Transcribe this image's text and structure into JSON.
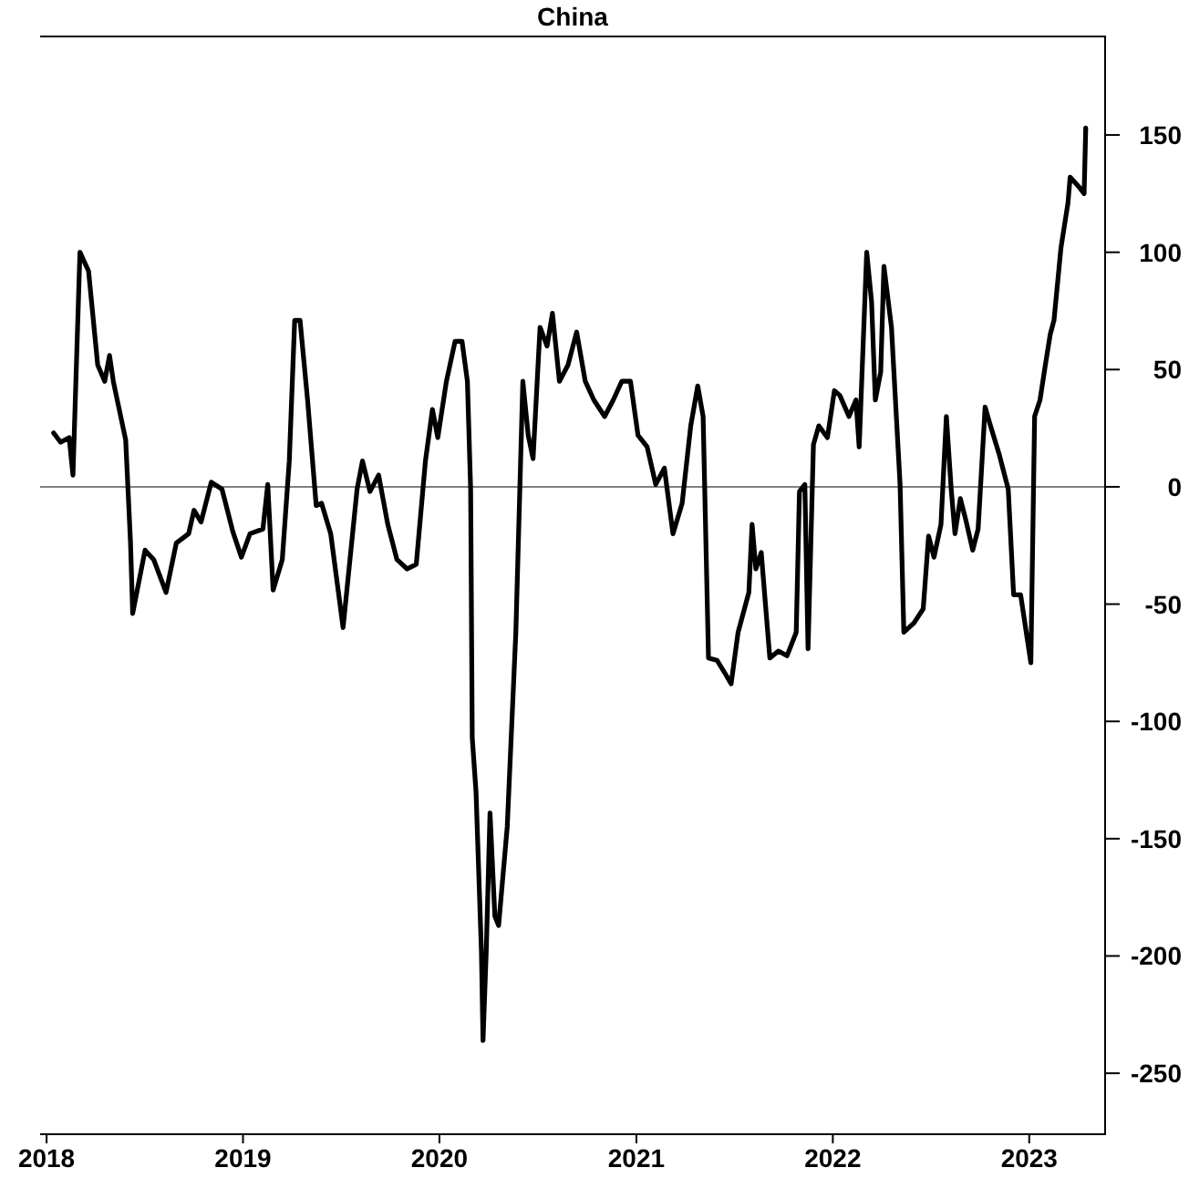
{
  "chart_data": {
    "type": "line",
    "title": "China",
    "x": [
      "2018-01-14",
      "2018-01-27",
      "2018-02-12",
      "2018-02-19",
      "2018-03-04",
      "2018-03-20",
      "2018-04-06",
      "2018-04-19",
      "2018-04-28",
      "2018-05-05",
      "2018-05-28",
      "2018-06-06",
      "2018-06-10",
      "2018-07-03",
      "2018-07-19",
      "2018-08-11",
      "2018-08-30",
      "2018-09-22",
      "2018-10-02",
      "2018-10-15",
      "2018-11-03",
      "2018-11-23",
      "2018-12-13",
      "2018-12-29",
      "2019-01-14",
      "2019-02-07",
      "2019-02-16",
      "2019-02-26",
      "2019-03-15",
      "2019-03-28",
      "2019-04-07",
      "2019-04-17",
      "2019-05-01",
      "2019-05-17",
      "2019-05-27",
      "2019-06-13",
      "2019-07-06",
      "2019-08-01",
      "2019-08-11",
      "2019-08-25",
      "2019-09-10",
      "2019-09-27",
      "2019-10-14",
      "2019-11-02",
      "2019-11-19",
      "2019-12-06",
      "2019-12-19",
      "2019-12-29",
      "2020-01-14",
      "2020-01-30",
      "2020-02-12",
      "2020-02-22",
      "2020-02-28",
      "2020-03-02",
      "2020-03-09",
      "2020-03-19",
      "2020-03-22",
      "2020-03-28",
      "2020-04-04",
      "2020-04-13",
      "2020-04-20",
      "2020-05-06",
      "2020-05-22",
      "2020-06-04",
      "2020-06-14",
      "2020-06-23",
      "2020-07-06",
      "2020-07-19",
      "2020-07-29",
      "2020-08-11",
      "2020-08-27",
      "2020-09-12",
      "2020-09-28",
      "2020-10-14",
      "2020-11-03",
      "2020-11-19",
      "2020-12-05",
      "2020-12-21",
      "2021-01-04",
      "2021-01-21",
      "2021-02-06",
      "2021-02-22",
      "2021-03-10",
      "2021-03-27",
      "2021-04-12",
      "2021-04-25",
      "2021-05-05",
      "2021-05-15",
      "2021-05-31",
      "2021-06-16",
      "2021-06-26",
      "2021-07-09",
      "2021-07-29",
      "2021-08-04",
      "2021-08-11",
      "2021-08-21",
      "2021-09-06",
      "2021-09-22",
      "2021-10-08",
      "2021-10-25",
      "2021-10-31",
      "2021-11-10",
      "2021-11-16",
      "2021-11-26",
      "2021-12-06",
      "2021-12-22",
      "2022-01-04",
      "2022-01-14",
      "2022-01-31",
      "2022-02-13",
      "2022-02-19",
      "2022-03-05",
      "2022-03-14",
      "2022-03-21",
      "2022-03-31",
      "2022-04-06",
      "2022-04-20",
      "2022-05-06",
      "2022-05-13",
      "2022-06-01",
      "2022-06-18",
      "2022-06-28",
      "2022-07-08",
      "2022-07-21",
      "2022-07-31",
      "2022-08-09",
      "2022-08-16",
      "2022-08-26",
      "2022-09-05",
      "2022-09-18",
      "2022-09-28",
      "2022-10-11",
      "2022-10-21",
      "2022-11-06",
      "2022-11-23",
      "2022-12-03",
      "2022-12-16",
      "2023-01-04",
      "2023-01-11",
      "2023-01-21",
      "2023-01-31",
      "2023-02-09",
      "2023-02-16",
      "2023-03-01",
      "2023-03-14",
      "2023-03-18",
      "2023-04-03",
      "2023-04-13",
      "2023-04-16"
    ],
    "series": [
      {
        "color": "#000000",
        "values": [
          23,
          19,
          21,
          5,
          100,
          92,
          52,
          45,
          56,
          45,
          20,
          -24,
          -54,
          -27,
          -31,
          -45,
          -24,
          -20,
          -10,
          -15,
          2,
          -1,
          -19,
          -30,
          -20,
          -18,
          1,
          -44,
          -31,
          11,
          71,
          71,
          37,
          -8,
          -7,
          -20,
          -60,
          -1,
          11,
          -2,
          5,
          -16,
          -31,
          -35,
          -33,
          11,
          33,
          21,
          45,
          62,
          62,
          45,
          -1,
          -107,
          -130,
          -198,
          -236,
          -198,
          -139,
          -183,
          -187,
          -145,
          -62,
          45,
          22,
          12,
          68,
          60,
          74,
          45,
          52,
          66,
          45,
          37,
          30,
          37,
          45,
          45,
          22,
          17,
          1,
          8,
          -20,
          -7,
          26,
          43,
          30,
          -73,
          -74,
          -80,
          -84,
          -62,
          -45,
          -16,
          -35,
          -28,
          -73,
          -70,
          -72,
          -62,
          -2,
          1,
          -69,
          18,
          26,
          21,
          41,
          39,
          30,
          37,
          17,
          100,
          79,
          37,
          49,
          94,
          68,
          1,
          -62,
          -58,
          -52,
          -21,
          -30,
          -16,
          30,
          -1,
          -20,
          -5,
          -14,
          -27,
          -18,
          34,
          26,
          14,
          -1,
          -46,
          -46,
          -75,
          30,
          37,
          52,
          65,
          71,
          102,
          121,
          132,
          128,
          125,
          153
        ]
      }
    ],
    "xlim": [
      "2017-12-20",
      "2023-05-22"
    ],
    "xticks": [
      {
        "value": "2018-01-01",
        "label": "2018"
      },
      {
        "value": "2019-01-01",
        "label": "2019"
      },
      {
        "value": "2020-01-01",
        "label": "2020"
      },
      {
        "value": "2021-01-01",
        "label": "2021"
      },
      {
        "value": "2022-01-01",
        "label": "2022"
      },
      {
        "value": "2023-01-01",
        "label": "2023"
      }
    ],
    "ylim": [
      -276,
      192
    ],
    "yticks": [
      -250,
      -200,
      -150,
      -100,
      -50,
      0,
      50,
      100,
      150
    ],
    "ref_lines": [
      {
        "axis": "y",
        "value": 0,
        "color": "#808080"
      }
    ],
    "grid": false,
    "line_style": "solid",
    "marker": "none"
  }
}
